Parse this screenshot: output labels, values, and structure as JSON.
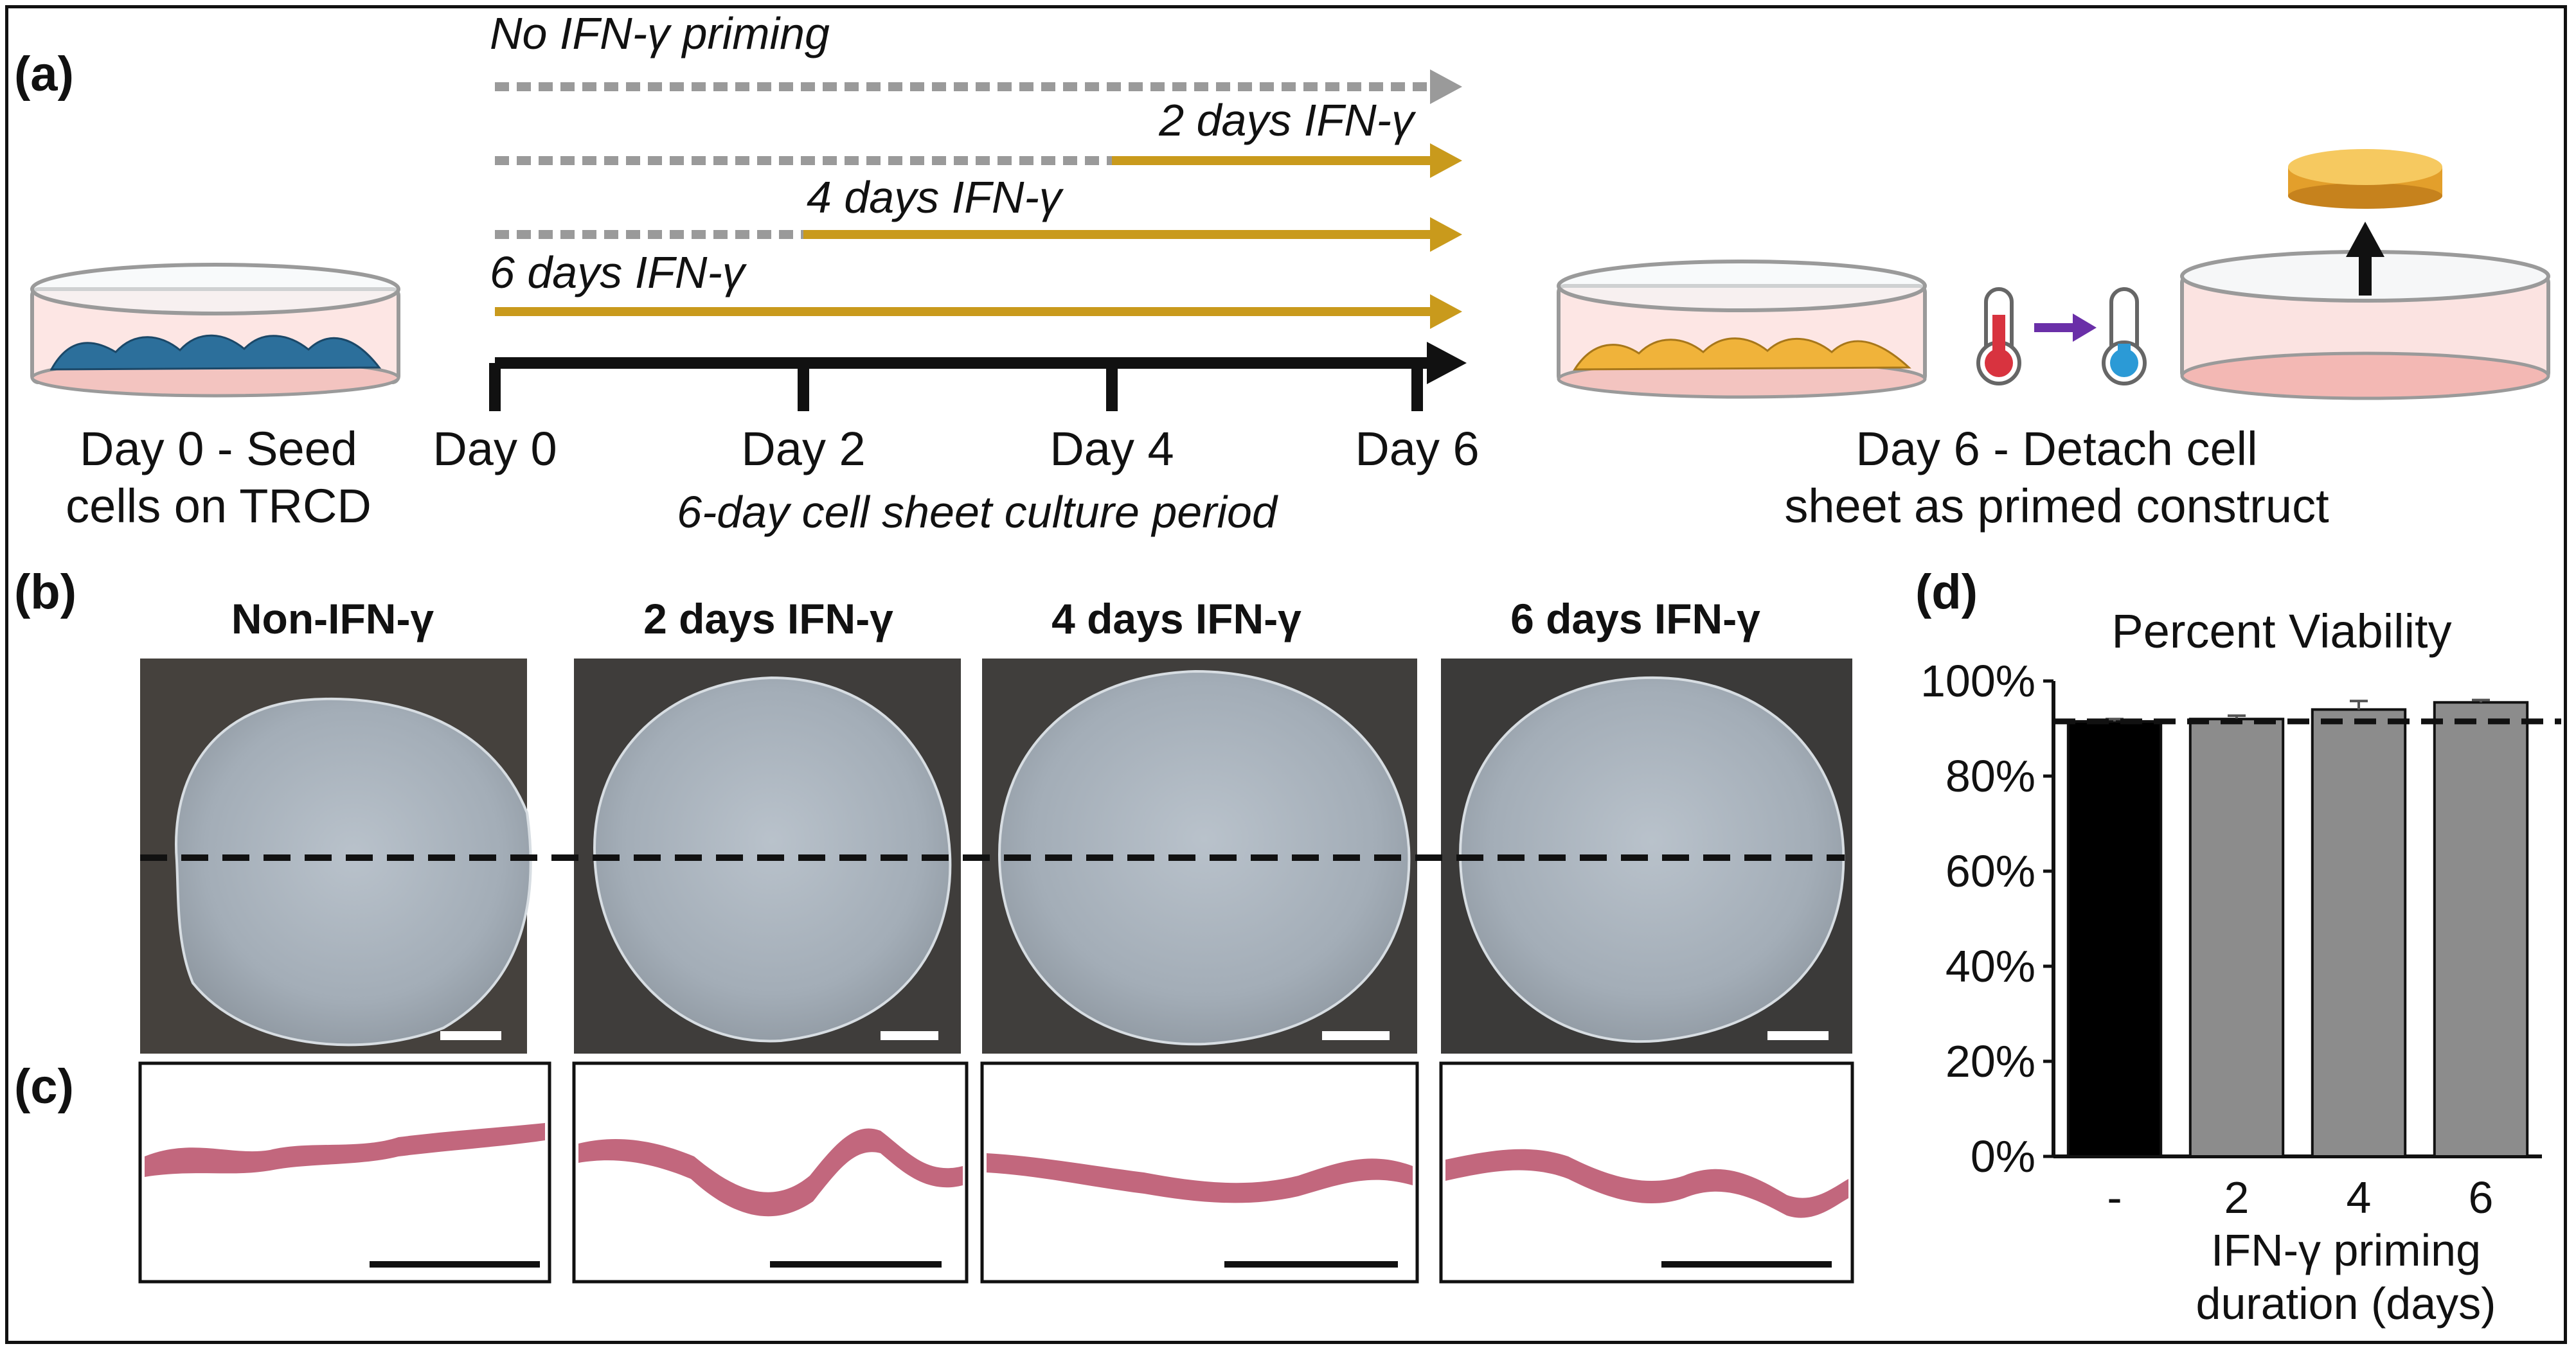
{
  "figure": {
    "panel_labels": {
      "a": "(a)",
      "b": "(b)",
      "c": "(c)",
      "d": "(d)"
    },
    "colors": {
      "ifn": "#c99a1c",
      "no_ifn": "#9a9a9a",
      "axis": "#111111",
      "cells_blue": "#2c6f9b",
      "cells_orange": "#f0b33a",
      "dish_pink": "#f3c4c0",
      "stain": "#c2677d",
      "arrow_purple": "#6a2fa8"
    }
  },
  "timeline": {
    "arrows": [
      {
        "label": "No IFN-γ priming",
        "priming_days": 0
      },
      {
        "label": "2 days IFN-γ",
        "priming_days": 2
      },
      {
        "label": "4 days IFN-γ",
        "priming_days": 4
      },
      {
        "label": "6 days IFN-γ",
        "priming_days": 6
      }
    ],
    "ticks": [
      "Day 0",
      "Day 2",
      "Day 4",
      "Day 6"
    ],
    "caption": "6-day cell sheet culture period",
    "seed_label_line1": "Day 0 - Seed",
    "seed_label_line2": "cells on TRCD",
    "detach_label_line1": "Day 6 - Detach cell",
    "detach_label_line2": "sheet as primed construct"
  },
  "conditions": [
    "Non-IFN-γ",
    "2 days IFN-γ",
    "4 days IFN-γ",
    "6 days IFN-γ"
  ],
  "chart_data": {
    "type": "bar",
    "title": "Percent Viability",
    "categories": [
      "-",
      "2",
      "4",
      "6"
    ],
    "values": [
      91.5,
      92,
      94,
      95.5
    ],
    "errors": [
      0.5,
      0.7,
      1.8,
      0.5
    ],
    "bar_colors": [
      "#000000",
      "#8c8c8c",
      "#8c8c8c",
      "#8c8c8c"
    ],
    "reference_line": 91.5,
    "xlabel_line1": "IFN-γ priming",
    "xlabel_line2": "duration (days)",
    "ylabel": "",
    "ylim": [
      0,
      100
    ],
    "yticks": [
      "0%",
      "20%",
      "40%",
      "60%",
      "80%",
      "100%"
    ]
  }
}
